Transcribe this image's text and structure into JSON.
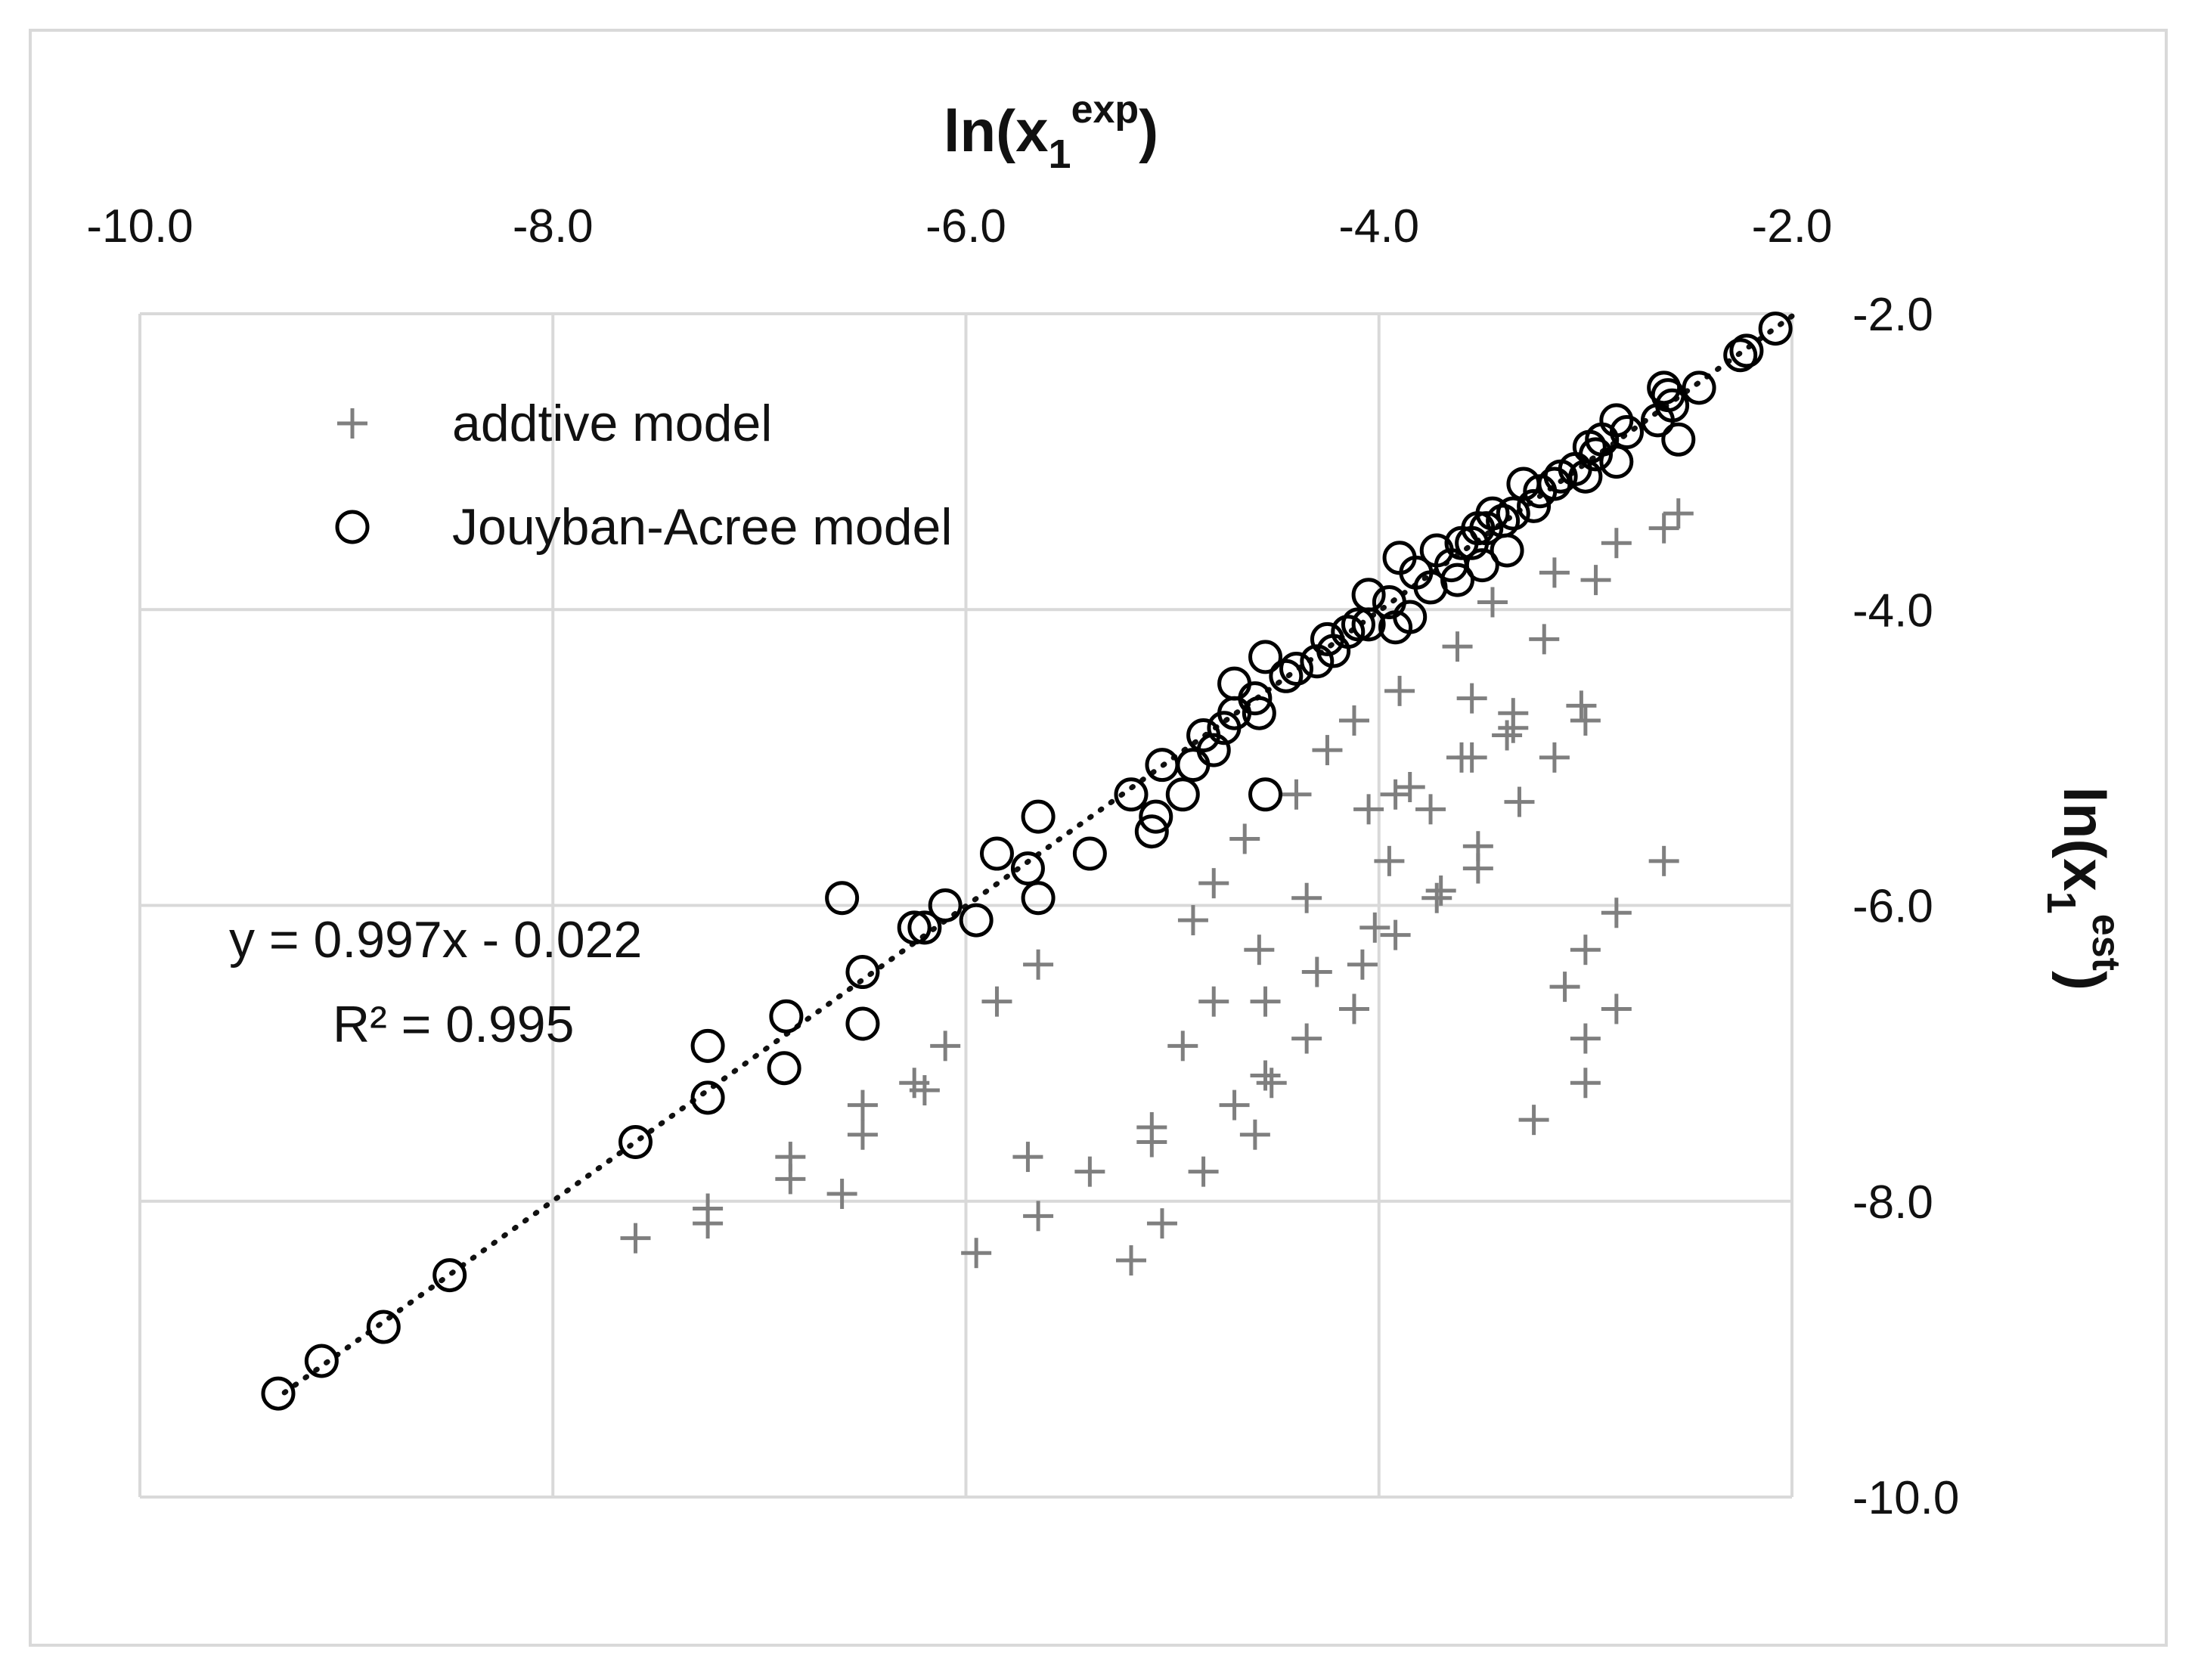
{
  "chart_data": {
    "type": "scatter",
    "xlabel": {
      "main": "ln(x",
      "sub": "1",
      "sup": "exp",
      "close": ")"
    },
    "ylabel": {
      "main": "ln(x",
      "sub": "1",
      "sup": "est",
      "close": ")"
    },
    "xlim": [
      -10.0,
      -2.0
    ],
    "ylim": [
      -10.0,
      -2.0
    ],
    "x_ticks": [
      "-10.0",
      "-8.0",
      "-6.0",
      "-4.0",
      "-2.0"
    ],
    "y_ticks": [
      "-2.0",
      "-4.0",
      "-6.0",
      "-8.0",
      "-10.0"
    ],
    "x_axis_position": "top",
    "y_axis_position": "right",
    "grid": true,
    "legend_position": "top-left",
    "equation": "y = 0.997x - 0.022",
    "r_squared": "R² = 0.995",
    "trendline": {
      "slope": 0.997,
      "intercept": -0.022,
      "x_range": [
        -9.3,
        -2.0
      ],
      "style": "dotted"
    },
    "colors": {
      "additive": "#7f7f7f",
      "jouyban": "#000000",
      "grid": "#d9d9d9",
      "frame": "#d9d9d9"
    },
    "series": [
      {
        "name": "addtive model",
        "marker": "plus",
        "points": [
          [
            -7.6,
            -8.25
          ],
          [
            -7.25,
            -8.15
          ],
          [
            -7.25,
            -8.05
          ],
          [
            -6.85,
            -7.85
          ],
          [
            -6.85,
            -7.7
          ],
          [
            -6.6,
            -7.95
          ],
          [
            -6.5,
            -7.55
          ],
          [
            -6.5,
            -7.35
          ],
          [
            -6.25,
            -7.2
          ],
          [
            -6.2,
            -7.25
          ],
          [
            -6.1,
            -6.95
          ],
          [
            -5.95,
            -8.35
          ],
          [
            -5.85,
            -6.65
          ],
          [
            -5.7,
            -7.7
          ],
          [
            -5.65,
            -8.1
          ],
          [
            -5.65,
            -6.4
          ],
          [
            -5.4,
            -7.8
          ],
          [
            -5.2,
            -8.4
          ],
          [
            -5.1,
            -7.5
          ],
          [
            -5.1,
            -7.6
          ],
          [
            -5.05,
            -8.15
          ],
          [
            -4.95,
            -6.95
          ],
          [
            -4.9,
            -6.1
          ],
          [
            -4.85,
            -7.8
          ],
          [
            -4.8,
            -5.85
          ],
          [
            -4.8,
            -6.65
          ],
          [
            -4.7,
            -7.35
          ],
          [
            -4.65,
            -5.55
          ],
          [
            -4.6,
            -7.55
          ],
          [
            -4.58,
            -6.3
          ],
          [
            -4.55,
            -6.65
          ],
          [
            -4.55,
            -7.15
          ],
          [
            -4.52,
            -7.2
          ],
          [
            -4.4,
            -5.25
          ],
          [
            -4.35,
            -5.95
          ],
          [
            -4.35,
            -6.9
          ],
          [
            -4.3,
            -6.45
          ],
          [
            -4.25,
            -4.95
          ],
          [
            -4.12,
            -4.75
          ],
          [
            -4.12,
            -6.7
          ],
          [
            -4.08,
            -6.4
          ],
          [
            -4.05,
            -5.35
          ],
          [
            -4.02,
            -6.15
          ],
          [
            -3.95,
            -5.7
          ],
          [
            -3.92,
            -5.25
          ],
          [
            -3.92,
            -6.2
          ],
          [
            -3.9,
            -4.55
          ],
          [
            -3.85,
            -5.2
          ],
          [
            -3.75,
            -5.35
          ],
          [
            -3.72,
            -5.95
          ],
          [
            -3.7,
            -5.9
          ],
          [
            -3.62,
            -4.25
          ],
          [
            -3.6,
            -5.0
          ],
          [
            -3.55,
            -4.6
          ],
          [
            -3.55,
            -5.0
          ],
          [
            -3.52,
            -5.6
          ],
          [
            -3.52,
            -5.75
          ],
          [
            -3.45,
            -3.95
          ],
          [
            -3.38,
            -4.85
          ],
          [
            -3.35,
            -4.7
          ],
          [
            -3.35,
            -4.8
          ],
          [
            -3.32,
            -5.3
          ],
          [
            -3.25,
            -7.45
          ],
          [
            -3.2,
            -4.2
          ],
          [
            -3.15,
            -3.75
          ],
          [
            -3.15,
            -5.0
          ],
          [
            -3.1,
            -6.55
          ],
          [
            -3.02,
            -4.65
          ],
          [
            -3.0,
            -4.75
          ],
          [
            -3.0,
            -6.3
          ],
          [
            -3.0,
            -6.9
          ],
          [
            -3.0,
            -7.2
          ],
          [
            -2.95,
            -3.8
          ],
          [
            -2.85,
            -3.55
          ],
          [
            -2.85,
            -6.05
          ],
          [
            -2.85,
            -6.7
          ],
          [
            -2.62,
            -3.45
          ],
          [
            -2.62,
            -5.7
          ],
          [
            -2.55,
            -3.35
          ]
        ]
      },
      {
        "name": "Jouyban-Acree model",
        "marker": "circle",
        "points": [
          [
            -9.33,
            -9.3
          ],
          [
            -9.12,
            -9.08
          ],
          [
            -8.82,
            -8.85
          ],
          [
            -8.5,
            -8.5
          ],
          [
            -7.6,
            -7.6
          ],
          [
            -7.25,
            -7.3
          ],
          [
            -7.25,
            -6.95
          ],
          [
            -6.88,
            -7.1
          ],
          [
            -6.87,
            -6.75
          ],
          [
            -6.6,
            -5.95
          ],
          [
            -6.5,
            -6.45
          ],
          [
            -6.5,
            -6.8
          ],
          [
            -6.25,
            -6.15
          ],
          [
            -6.2,
            -6.15
          ],
          [
            -6.1,
            -6.0
          ],
          [
            -5.95,
            -6.1
          ],
          [
            -5.85,
            -5.65
          ],
          [
            -5.7,
            -5.75
          ],
          [
            -5.65,
            -5.95
          ],
          [
            -5.65,
            -5.4
          ],
          [
            -5.4,
            -5.65
          ],
          [
            -5.2,
            -5.25
          ],
          [
            -5.1,
            -5.5
          ],
          [
            -5.08,
            -5.4
          ],
          [
            -5.05,
            -5.05
          ],
          [
            -4.95,
            -5.25
          ],
          [
            -4.9,
            -5.05
          ],
          [
            -4.85,
            -4.85
          ],
          [
            -4.8,
            -4.95
          ],
          [
            -4.75,
            -4.8
          ],
          [
            -4.7,
            -4.7
          ],
          [
            -4.7,
            -4.5
          ],
          [
            -4.6,
            -4.6
          ],
          [
            -4.58,
            -4.7
          ],
          [
            -4.55,
            -5.25
          ],
          [
            -4.55,
            -4.32
          ],
          [
            -4.45,
            -4.45
          ],
          [
            -4.4,
            -4.4
          ],
          [
            -4.3,
            -4.35
          ],
          [
            -4.25,
            -4.2
          ],
          [
            -4.22,
            -4.28
          ],
          [
            -4.15,
            -4.15
          ],
          [
            -4.1,
            -4.1
          ],
          [
            -4.05,
            -4.1
          ],
          [
            -4.05,
            -3.9
          ],
          [
            -3.95,
            -3.95
          ],
          [
            -3.92,
            -4.12
          ],
          [
            -3.9,
            -3.65
          ],
          [
            -3.85,
            -4.05
          ],
          [
            -3.82,
            -3.75
          ],
          [
            -3.75,
            -3.85
          ],
          [
            -3.72,
            -3.6
          ],
          [
            -3.65,
            -3.7
          ],
          [
            -3.62,
            -3.8
          ],
          [
            -3.6,
            -3.55
          ],
          [
            -3.55,
            -3.55
          ],
          [
            -3.52,
            -3.45
          ],
          [
            -3.5,
            -3.7
          ],
          [
            -3.48,
            -3.45
          ],
          [
            -3.45,
            -3.35
          ],
          [
            -3.4,
            -3.4
          ],
          [
            -3.38,
            -3.6
          ],
          [
            -3.35,
            -3.35
          ],
          [
            -3.3,
            -3.15
          ],
          [
            -3.25,
            -3.3
          ],
          [
            -3.22,
            -3.2
          ],
          [
            -3.15,
            -3.15
          ],
          [
            -3.12,
            -3.1
          ],
          [
            -3.05,
            -3.05
          ],
          [
            -3.0,
            -3.1
          ],
          [
            -2.98,
            -2.9
          ],
          [
            -2.95,
            -2.95
          ],
          [
            -2.92,
            -2.85
          ],
          [
            -2.85,
            -3.0
          ],
          [
            -2.85,
            -2.72
          ],
          [
            -2.8,
            -2.8
          ],
          [
            -2.65,
            -2.72
          ],
          [
            -2.62,
            -2.5
          ],
          [
            -2.6,
            -2.55
          ],
          [
            -2.58,
            -2.62
          ],
          [
            -2.55,
            -2.85
          ],
          [
            -2.45,
            -2.5
          ],
          [
            -2.25,
            -2.28
          ],
          [
            -2.22,
            -2.25
          ],
          [
            -2.08,
            -2.1
          ]
        ]
      }
    ]
  }
}
